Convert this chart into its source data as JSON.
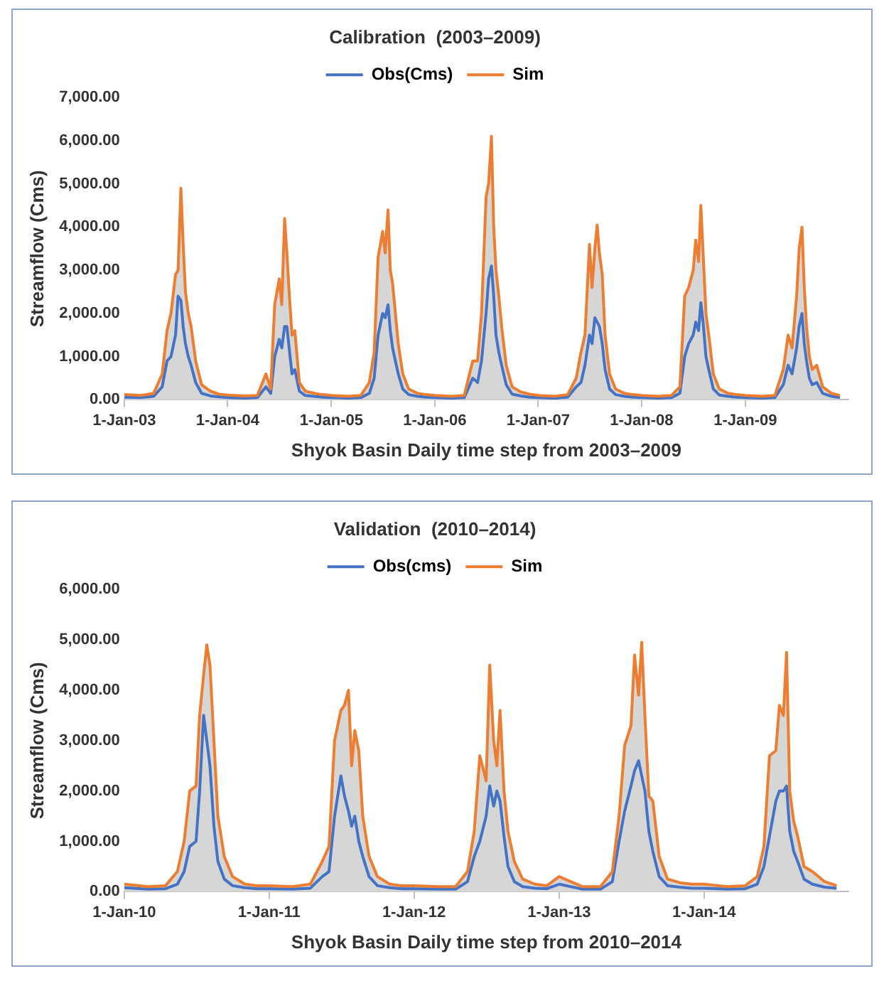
{
  "chart_data": [
    {
      "type": "line",
      "title": "Calibration  (2003–2009)",
      "xlabel": "Shyok Basin Daily time step from 2003–2009",
      "ylabel": "Streamflow (Cms)",
      "legend": "top",
      "grid": false,
      "marker": "none",
      "line_style": "solid",
      "x": [
        "2003-01-01",
        "2003-03-01",
        "2003-04-15",
        "2003-05-15",
        "2003-06-01",
        "2003-06-15",
        "2003-07-01",
        "2003-07-10",
        "2003-07-20",
        "2003-07-28",
        "2003-08-05",
        "2003-08-15",
        "2003-08-25",
        "2003-09-10",
        "2003-10-01",
        "2003-11-01",
        "2003-12-01",
        "2004-01-01",
        "2004-03-01",
        "2004-04-15",
        "2004-05-15",
        "2004-06-01",
        "2004-06-15",
        "2004-07-01",
        "2004-07-10",
        "2004-07-20",
        "2004-07-28",
        "2004-08-05",
        "2004-08-15",
        "2004-08-25",
        "2004-09-10",
        "2004-10-01",
        "2004-11-01",
        "2004-12-01",
        "2005-01-01",
        "2005-03-01",
        "2005-04-15",
        "2005-05-15",
        "2005-06-01",
        "2005-06-15",
        "2005-07-01",
        "2005-07-10",
        "2005-07-20",
        "2005-07-28",
        "2005-08-05",
        "2005-08-15",
        "2005-08-25",
        "2005-09-10",
        "2005-10-01",
        "2005-11-01",
        "2005-12-01",
        "2006-01-01",
        "2006-03-01",
        "2006-04-15",
        "2006-05-15",
        "2006-06-01",
        "2006-06-15",
        "2006-07-01",
        "2006-07-10",
        "2006-07-20",
        "2006-07-28",
        "2006-08-05",
        "2006-08-15",
        "2006-08-25",
        "2006-09-10",
        "2006-10-01",
        "2006-11-01",
        "2006-12-01",
        "2007-01-01",
        "2007-03-01",
        "2007-04-15",
        "2007-05-15",
        "2007-06-01",
        "2007-06-15",
        "2007-07-01",
        "2007-07-10",
        "2007-07-20",
        "2007-07-28",
        "2007-08-05",
        "2007-08-15",
        "2007-08-25",
        "2007-09-10",
        "2007-10-01",
        "2007-11-01",
        "2007-12-01",
        "2008-01-01",
        "2008-03-01",
        "2008-04-15",
        "2008-05-15",
        "2008-06-01",
        "2008-06-15",
        "2008-07-01",
        "2008-07-10",
        "2008-07-20",
        "2008-07-28",
        "2008-08-05",
        "2008-08-15",
        "2008-08-25",
        "2008-09-10",
        "2008-10-01",
        "2008-11-01",
        "2008-12-01",
        "2009-01-01",
        "2009-03-01",
        "2009-04-15",
        "2009-05-15",
        "2009-06-01",
        "2009-06-15",
        "2009-07-01",
        "2009-07-10",
        "2009-07-20",
        "2009-07-28",
        "2009-08-05",
        "2009-08-15",
        "2009-08-25",
        "2009-09-10",
        "2009-10-01",
        "2009-11-01",
        "2009-12-01"
      ],
      "xlim": [
        "2003-01-01",
        "2009-12-31"
      ],
      "xticks": [
        {
          "value": "2003-01-01",
          "label": "1-Jan-03"
        },
        {
          "value": "2004-01-01",
          "label": "1-Jan-04"
        },
        {
          "value": "2005-01-01",
          "label": "1-Jan-05"
        },
        {
          "value": "2006-01-01",
          "label": "1-Jan-06"
        },
        {
          "value": "2007-01-01",
          "label": "1-Jan-07"
        },
        {
          "value": "2008-01-01",
          "label": "1-Jan-08"
        },
        {
          "value": "2009-01-01",
          "label": "1-Jan-09"
        }
      ],
      "ylim": [
        0,
        7000
      ],
      "yticks": [
        {
          "value": 0,
          "label": "0.00"
        },
        {
          "value": 1000,
          "label": "1,000.00"
        },
        {
          "value": 2000,
          "label": "2,000.00"
        },
        {
          "value": 3000,
          "label": "3,000.00"
        },
        {
          "value": 4000,
          "label": "4,000.00"
        },
        {
          "value": 5000,
          "label": "5,000.00"
        },
        {
          "value": 6000,
          "label": "6,000.00"
        },
        {
          "value": 7000,
          "label": "7,000.00"
        }
      ],
      "series": [
        {
          "name": "Obs(Cms)",
          "type": "line",
          "color": "#4472c4",
          "values": [
            60,
            50,
            80,
            300,
            900,
            1000,
            1500,
            2400,
            2300,
            1700,
            1300,
            1000,
            800,
            400,
            150,
            90,
            70,
            50,
            40,
            50,
            300,
            150,
            1000,
            1400,
            1200,
            1700,
            1700,
            1200,
            600,
            700,
            200,
            100,
            80,
            60,
            50,
            40,
            50,
            150,
            500,
            1500,
            2000,
            1900,
            2200,
            1600,
            1200,
            900,
            600,
            250,
            120,
            80,
            60,
            50,
            40,
            50,
            500,
            400,
            900,
            2000,
            2800,
            3100,
            2400,
            1500,
            1100,
            800,
            350,
            130,
            90,
            60,
            50,
            40,
            60,
            300,
            400,
            800,
            1500,
            1300,
            1900,
            1800,
            1700,
            1300,
            700,
            250,
            120,
            80,
            60,
            50,
            40,
            50,
            150,
            1000,
            1300,
            1500,
            1800,
            1600,
            2250,
            1800,
            1000,
            700,
            250,
            110,
            80,
            60,
            50,
            40,
            50,
            350,
            800,
            600,
            1200,
            1700,
            2000,
            1300,
            900,
            500,
            350,
            400,
            150,
            80,
            50
          ]
        },
        {
          "name": "Sim",
          "type": "area",
          "color": "#ed7d31",
          "values": [
            120,
            100,
            150,
            600,
            1600,
            2000,
            2900,
            3000,
            4900,
            3600,
            2500,
            2000,
            1700,
            900,
            350,
            200,
            130,
            110,
            90,
            100,
            600,
            250,
            2200,
            2800,
            2200,
            4200,
            3400,
            2500,
            1500,
            1600,
            400,
            200,
            150,
            120,
            100,
            80,
            100,
            400,
            1100,
            3300,
            3900,
            3400,
            4400,
            3000,
            2700,
            2000,
            1300,
            600,
            250,
            150,
            120,
            100,
            80,
            100,
            900,
            900,
            2000,
            4700,
            5000,
            6100,
            4000,
            3000,
            2400,
            1700,
            800,
            300,
            180,
            130,
            100,
            80,
            120,
            500,
            1100,
            1500,
            3600,
            2600,
            3500,
            4050,
            3400,
            2900,
            1500,
            600,
            250,
            150,
            120,
            100,
            80,
            100,
            300,
            2400,
            2600,
            3000,
            3700,
            3200,
            4500,
            3400,
            2000,
            1500,
            600,
            250,
            150,
            120,
            100,
            80,
            100,
            700,
            1500,
            1200,
            2400,
            3500,
            4000,
            2600,
            1700,
            1000,
            700,
            800,
            300,
            150,
            100
          ]
        }
      ]
    },
    {
      "type": "line",
      "title": "Validation  (2010–2014)",
      "xlabel": "Shyok Basin Daily time step from 2010–2014",
      "ylabel": "Streamflow (Cms)",
      "legend": "top",
      "grid": false,
      "marker": "none",
      "line_style": "solid",
      "x": [
        "2010-01-01",
        "2010-03-01",
        "2010-04-15",
        "2010-05-15",
        "2010-06-01",
        "2010-06-15",
        "2010-07-01",
        "2010-07-10",
        "2010-07-20",
        "2010-07-28",
        "2010-08-05",
        "2010-08-15",
        "2010-08-25",
        "2010-09-10",
        "2010-10-01",
        "2010-11-01",
        "2010-12-01",
        "2011-01-01",
        "2011-03-01",
        "2011-04-15",
        "2011-05-15",
        "2011-06-01",
        "2011-06-15",
        "2011-07-01",
        "2011-07-10",
        "2011-07-20",
        "2011-07-28",
        "2011-08-05",
        "2011-08-15",
        "2011-08-25",
        "2011-09-10",
        "2011-10-01",
        "2011-11-01",
        "2011-12-01",
        "2012-01-01",
        "2012-03-01",
        "2012-04-15",
        "2012-05-15",
        "2012-06-01",
        "2012-06-15",
        "2012-07-01",
        "2012-07-10",
        "2012-07-20",
        "2012-07-28",
        "2012-08-05",
        "2012-08-15",
        "2012-08-25",
        "2012-09-10",
        "2012-10-01",
        "2012-11-01",
        "2012-12-01",
        "2013-01-01",
        "2013-03-01",
        "2013-04-15",
        "2013-05-15",
        "2013-06-01",
        "2013-06-15",
        "2013-07-01",
        "2013-07-10",
        "2013-07-20",
        "2013-07-28",
        "2013-08-05",
        "2013-08-15",
        "2013-08-25",
        "2013-09-10",
        "2013-10-01",
        "2013-11-01",
        "2013-12-01",
        "2014-01-01",
        "2014-03-01",
        "2014-04-15",
        "2014-05-15",
        "2014-06-01",
        "2014-06-15",
        "2014-07-01",
        "2014-07-10",
        "2014-07-20",
        "2014-07-28",
        "2014-08-05",
        "2014-08-15",
        "2014-08-25",
        "2014-09-10",
        "2014-10-01",
        "2014-11-01",
        "2014-12-01"
      ],
      "xlim": [
        "2010-01-01",
        "2014-12-31"
      ],
      "xticks": [
        {
          "value": "2010-01-01",
          "label": "1-Jan-10"
        },
        {
          "value": "2011-01-01",
          "label": "1-Jan-11"
        },
        {
          "value": "2012-01-01",
          "label": "1-Jan-12"
        },
        {
          "value": "2013-01-01",
          "label": "1-Jan-13"
        },
        {
          "value": "2014-01-01",
          "label": "1-Jan-14"
        }
      ],
      "ylim": [
        0,
        6000
      ],
      "yticks": [
        {
          "value": 0,
          "label": "0.00"
        },
        {
          "value": 1000,
          "label": "1,000.00"
        },
        {
          "value": 2000,
          "label": "2,000.00"
        },
        {
          "value": 3000,
          "label": "3,000.00"
        },
        {
          "value": 4000,
          "label": "4,000.00"
        },
        {
          "value": 5000,
          "label": "5,000.00"
        },
        {
          "value": 6000,
          "label": "6,000.00"
        }
      ],
      "series": [
        {
          "name": "Obs(cms)",
          "type": "line",
          "color": "#4472c4",
          "values": [
            80,
            50,
            60,
            150,
            400,
            900,
            1000,
            2000,
            3500,
            3000,
            2500,
            1300,
            600,
            250,
            120,
            80,
            60,
            60,
            50,
            70,
            300,
            400,
            1500,
            2300,
            1900,
            1600,
            1300,
            1500,
            1000,
            700,
            300,
            120,
            80,
            60,
            60,
            50,
            50,
            200,
            700,
            1000,
            1500,
            2100,
            1700,
            2000,
            1800,
            1100,
            500,
            200,
            100,
            70,
            60,
            150,
            50,
            50,
            200,
            1000,
            1600,
            2100,
            2400,
            2600,
            2300,
            2000,
            1200,
            800,
            300,
            120,
            90,
            70,
            70,
            50,
            60,
            150,
            500,
            1100,
            1800,
            2000,
            2000,
            2100,
            1200,
            800,
            600,
            250,
            150,
            90,
            70
          ]
        },
        {
          "name": "Sim",
          "type": "area",
          "color": "#ed7d31",
          "values": [
            150,
            100,
            120,
            400,
            1000,
            2000,
            2100,
            3500,
            4300,
            4900,
            4500,
            3000,
            1500,
            700,
            300,
            150,
            120,
            120,
            100,
            150,
            600,
            900,
            3000,
            3600,
            3700,
            4000,
            2500,
            3200,
            2800,
            1500,
            700,
            300,
            150,
            120,
            120,
            100,
            100,
            400,
            1200,
            2700,
            2200,
            4500,
            3000,
            2500,
            3600,
            2000,
            1200,
            600,
            250,
            150,
            120,
            300,
            100,
            100,
            400,
            1500,
            2900,
            3300,
            4700,
            3900,
            4950,
            3500,
            1900,
            1800,
            700,
            250,
            180,
            150,
            150,
            100,
            120,
            300,
            900,
            2700,
            2800,
            3700,
            3500,
            4750,
            2000,
            1400,
            1100,
            500,
            400,
            200,
            120
          ]
        }
      ]
    }
  ]
}
